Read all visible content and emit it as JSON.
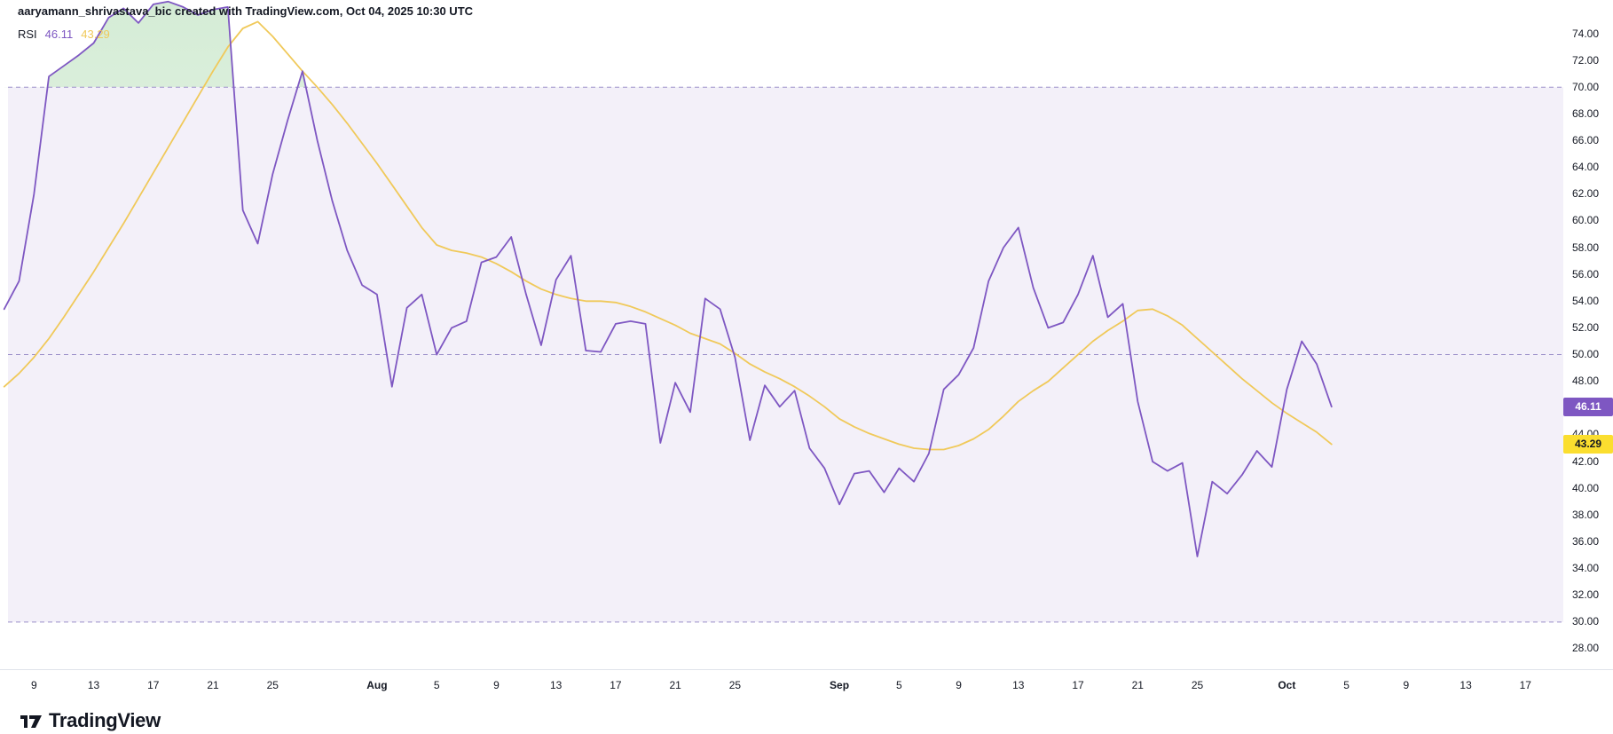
{
  "header": {
    "attribution": "aaryamann_shrivastava_bic created with TradingView.com, Oct 04, 2025 10:30 UTC"
  },
  "legend": {
    "indicator": "RSI",
    "rsi_value": "46.11",
    "ma_value": "43.29"
  },
  "footer": {
    "brand": "TradingView"
  },
  "colors": {
    "background": "#ffffff",
    "text": "#131722",
    "band_fill": "rgba(126,87,194,0.09)",
    "level_line": "#9B8FC9",
    "overbought_fill_top": "rgba(102,187,106,0.28)",
    "overbought_fill_bottom": "rgba(102,187,106,0.05)",
    "axis_separator": "#E0E3EB"
  },
  "chart_data": {
    "type": "line",
    "title": "RSI",
    "x_unit": "days",
    "x_index_start_date": "2025-07-07",
    "ylim": [
      26.5,
      76.5
    ],
    "grid": false,
    "band": [
      70,
      30
    ],
    "levels": [
      70,
      50,
      30
    ],
    "y_ticks": [
      74,
      72,
      70,
      68,
      66,
      64,
      62,
      60,
      58,
      56,
      54,
      52,
      50,
      48,
      46,
      44,
      42,
      40,
      38,
      36,
      34,
      32,
      30,
      28
    ],
    "x_ticks": [
      {
        "label": "9",
        "day": 2
      },
      {
        "label": "13",
        "day": 6
      },
      {
        "label": "17",
        "day": 10
      },
      {
        "label": "21",
        "day": 14
      },
      {
        "label": "25",
        "day": 18
      },
      {
        "label": "Aug",
        "day": 25,
        "bold": true
      },
      {
        "label": "5",
        "day": 29
      },
      {
        "label": "9",
        "day": 33
      },
      {
        "label": "13",
        "day": 37
      },
      {
        "label": "17",
        "day": 41
      },
      {
        "label": "21",
        "day": 45
      },
      {
        "label": "25",
        "day": 49
      },
      {
        "label": "Sep",
        "day": 56,
        "bold": true
      },
      {
        "label": "5",
        "day": 60
      },
      {
        "label": "9",
        "day": 64
      },
      {
        "label": "13",
        "day": 68
      },
      {
        "label": "17",
        "day": 72
      },
      {
        "label": "21",
        "day": 76
      },
      {
        "label": "25",
        "day": 80
      },
      {
        "label": "Oct",
        "day": 86,
        "bold": true
      },
      {
        "label": "5",
        "day": 90
      },
      {
        "label": "9",
        "day": 94
      },
      {
        "label": "13",
        "day": 98
      },
      {
        "label": "17",
        "day": 102
      }
    ],
    "series": [
      {
        "name": "RSI",
        "color": "#7E57C2",
        "values": [
          53.4,
          55.5,
          62.0,
          70.8,
          71.6,
          72.4,
          73.3,
          75.2,
          75.9,
          74.8,
          76.2,
          76.4,
          76.0,
          75.4,
          75.8,
          76.0,
          60.8,
          58.3,
          63.5,
          67.5,
          71.2,
          66.0,
          61.5,
          57.8,
          55.2,
          54.5,
          47.6,
          53.5,
          54.5,
          50.0,
          52.0,
          52.5,
          56.9,
          57.3,
          58.8,
          54.5,
          50.7,
          55.6,
          57.4,
          50.3,
          50.2,
          52.3,
          52.5,
          52.3,
          43.4,
          47.9,
          45.7,
          54.2,
          53.4,
          49.8,
          43.6,
          47.7,
          46.1,
          47.3,
          43.0,
          41.5,
          38.8,
          41.1,
          41.3,
          39.7,
          41.5,
          40.5,
          42.6,
          47.4,
          48.5,
          50.5,
          55.5,
          58.0,
          59.5,
          55.0,
          52.0,
          52.4,
          54.5,
          57.4,
          52.8,
          53.8,
          46.5,
          42.0,
          41.3,
          41.9,
          34.9,
          40.5,
          39.6,
          41.0,
          42.8,
          41.6,
          47.4,
          51.0,
          49.3,
          46.11
        ]
      },
      {
        "name": "RSI-based MA",
        "color": "#F0C95A",
        "values": [
          47.6,
          48.6,
          49.8,
          51.2,
          52.8,
          54.5,
          56.2,
          58.0,
          59.8,
          61.7,
          63.6,
          65.5,
          67.4,
          69.3,
          71.2,
          73.0,
          74.4,
          74.9,
          73.8,
          72.5,
          71.2,
          70.0,
          68.7,
          67.3,
          65.8,
          64.3,
          62.7,
          61.1,
          59.5,
          58.2,
          57.8,
          57.6,
          57.3,
          56.8,
          56.2,
          55.5,
          54.9,
          54.5,
          54.2,
          54.0,
          54.0,
          53.9,
          53.6,
          53.2,
          52.7,
          52.2,
          51.6,
          51.2,
          50.8,
          50.1,
          49.3,
          48.7,
          48.2,
          47.6,
          46.9,
          46.1,
          45.2,
          44.6,
          44.1,
          43.7,
          43.3,
          43.0,
          42.9,
          42.9,
          43.2,
          43.7,
          44.4,
          45.4,
          46.5,
          47.3,
          48.0,
          49.0,
          50.0,
          51.0,
          51.8,
          52.5,
          53.3,
          53.4,
          52.9,
          52.2,
          51.2,
          50.2,
          49.2,
          48.2,
          47.3,
          46.4,
          45.6,
          44.9,
          44.2,
          43.29
        ]
      }
    ],
    "badges": [
      {
        "name": "rsi-price-badge",
        "text": "46.11",
        "value": 46.11,
        "bg": "#7E57C2",
        "fg": "#ffffff"
      },
      {
        "name": "ma-price-badge",
        "text": "43.29",
        "value": 43.29,
        "bg": "#FBDE2F",
        "fg": "#131722"
      }
    ]
  }
}
